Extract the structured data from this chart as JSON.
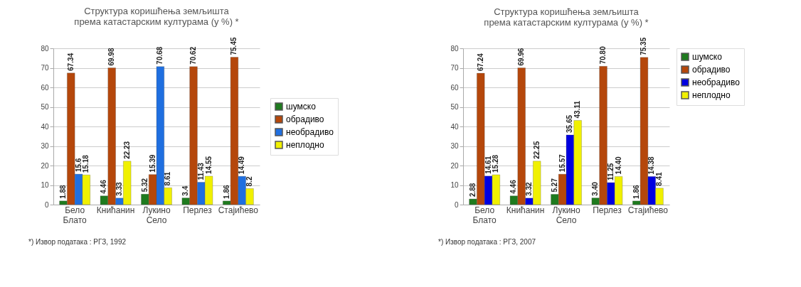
{
  "chart_data": [
    {
      "type": "bar",
      "title": "Структура коришћења земљишта\nпрема катастарским културама (у %) *",
      "categories": [
        "Бело Блато",
        "Книћанин",
        "Лукино Село",
        "Перлез",
        "Стајићево"
      ],
      "series": [
        {
          "name": "шумско",
          "color": "#1e7b1e",
          "values": [
            1.88,
            4.46,
            5.32,
            3.4,
            1.86
          ],
          "value_labels": [
            "1.88",
            "4.46",
            "5.32",
            "3.4",
            "1.86"
          ]
        },
        {
          "name": "обрадиво",
          "color": "#b5470b",
          "values": [
            67.34,
            69.98,
            15.39,
            70.62,
            75.45
          ],
          "value_labels": [
            "67.34",
            "69.98",
            "15.39",
            "70.62",
            "75.45"
          ]
        },
        {
          "name": "необрадиво",
          "color": "#1f6fe0",
          "values": [
            15.6,
            3.33,
            70.68,
            11.43,
            14.49
          ],
          "value_labels": [
            "15.6",
            "3.33",
            "70.68",
            "11.43",
            "14.49"
          ]
        },
        {
          "name": "неплодно",
          "color": "#f0f000",
          "values": [
            15.18,
            22.23,
            8.61,
            14.55,
            8.2
          ],
          "value_labels": [
            "15.18",
            "22.23",
            "8.61",
            "14.55",
            "8.2"
          ]
        }
      ],
      "ylim": [
        0,
        80
      ],
      "yticks": [
        0,
        10,
        20,
        30,
        40,
        50,
        60,
        70,
        80
      ],
      "grid": "y",
      "legend": "right",
      "annotations": [
        "*) Извор података : РГЗ, 1992"
      ]
    },
    {
      "type": "bar",
      "title": "Структура коришћења земљишта\nпрема катастарским културама (у %) *",
      "categories": [
        "Бело Блато",
        "Книћанин",
        "Лукино Село",
        "Перлез",
        "Стајићево"
      ],
      "series": [
        {
          "name": "шумско",
          "color": "#1e7b1e",
          "values": [
            2.88,
            4.46,
            5.27,
            3.4,
            1.86
          ],
          "value_labels": [
            "2.88",
            "4.46",
            "5.27",
            "3.40",
            "1.86"
          ]
        },
        {
          "name": "обрадиво",
          "color": "#b5470b",
          "values": [
            67.24,
            69.96,
            15.57,
            70.8,
            75.35
          ],
          "value_labels": [
            "67.24",
            "69.96",
            "15.57",
            "70.80",
            "75.35"
          ]
        },
        {
          "name": "необрадиво",
          "color": "#0000e0",
          "values": [
            14.61,
            3.32,
            35.65,
            11.25,
            14.38
          ],
          "value_labels": [
            "14.61",
            "3.32",
            "35.65",
            "11.25",
            "14.38"
          ]
        },
        {
          "name": "неплодно",
          "color": "#f0f000",
          "values": [
            15.28,
            22.25,
            43.11,
            14.4,
            8.41
          ],
          "value_labels": [
            "15.28",
            "22.25",
            "43.11",
            "14.40",
            "8.41"
          ]
        }
      ],
      "ylim": [
        0,
        80
      ],
      "yticks": [
        0,
        10,
        20,
        30,
        40,
        50,
        60,
        70,
        80
      ],
      "grid": "y",
      "legend": "top right",
      "annotations": [
        "*) Извор података : РГЗ, 2007"
      ]
    }
  ]
}
